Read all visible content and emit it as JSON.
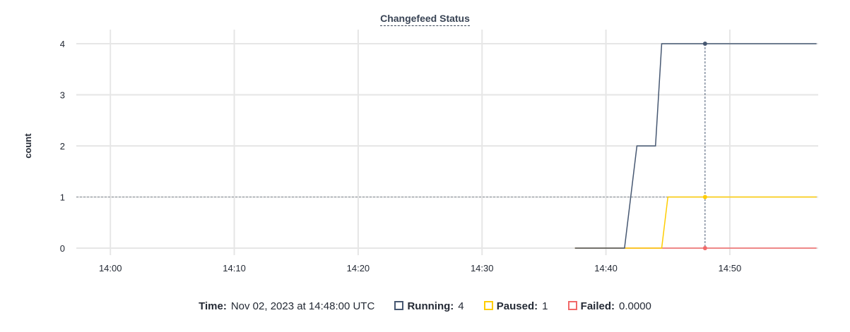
{
  "chart_data": {
    "type": "line",
    "title": "Changefeed Status",
    "ylabel": "count",
    "xlabel": "",
    "ylim": [
      0,
      4
    ],
    "yticks": [
      "0",
      "1",
      "2",
      "3",
      "4"
    ],
    "xlim": [
      "13:57:15",
      "14:57:08"
    ],
    "xticks": [
      "14:00",
      "14:10",
      "14:20",
      "14:30",
      "14:40",
      "14:50"
    ],
    "grid": true,
    "series": [
      {
        "name": "Running",
        "color": "#475872",
        "points": [
          [
            "14:37:30",
            0
          ],
          [
            "14:41:30",
            0
          ],
          [
            "14:42:30",
            2
          ],
          [
            "14:44:00",
            2
          ],
          [
            "14:44:30",
            4
          ],
          [
            "14:57:00",
            4
          ]
        ]
      },
      {
        "name": "Paused",
        "color": "#ffcd02",
        "points": [
          [
            "14:37:30",
            0
          ],
          [
            "14:44:30",
            0
          ],
          [
            "14:45:00",
            1
          ],
          [
            "14:57:00",
            1
          ]
        ]
      },
      {
        "name": "Failed",
        "color": "#f16969",
        "points": [
          [
            "14:37:30",
            0
          ],
          [
            "14:57:00",
            0
          ]
        ]
      }
    ],
    "hover": {
      "time": "14:48:00",
      "value_line": 1
    }
  },
  "legend": {
    "time_label": "Time:",
    "time_value": "Nov 02, 2023 at 14:48:00 UTC",
    "items": [
      {
        "label": "Running:",
        "value": "4",
        "color": "#475872"
      },
      {
        "label": "Paused:",
        "value": "1",
        "color": "#ffcd02"
      },
      {
        "label": "Failed:",
        "value": "0.0000",
        "color": "#f16969"
      }
    ]
  }
}
